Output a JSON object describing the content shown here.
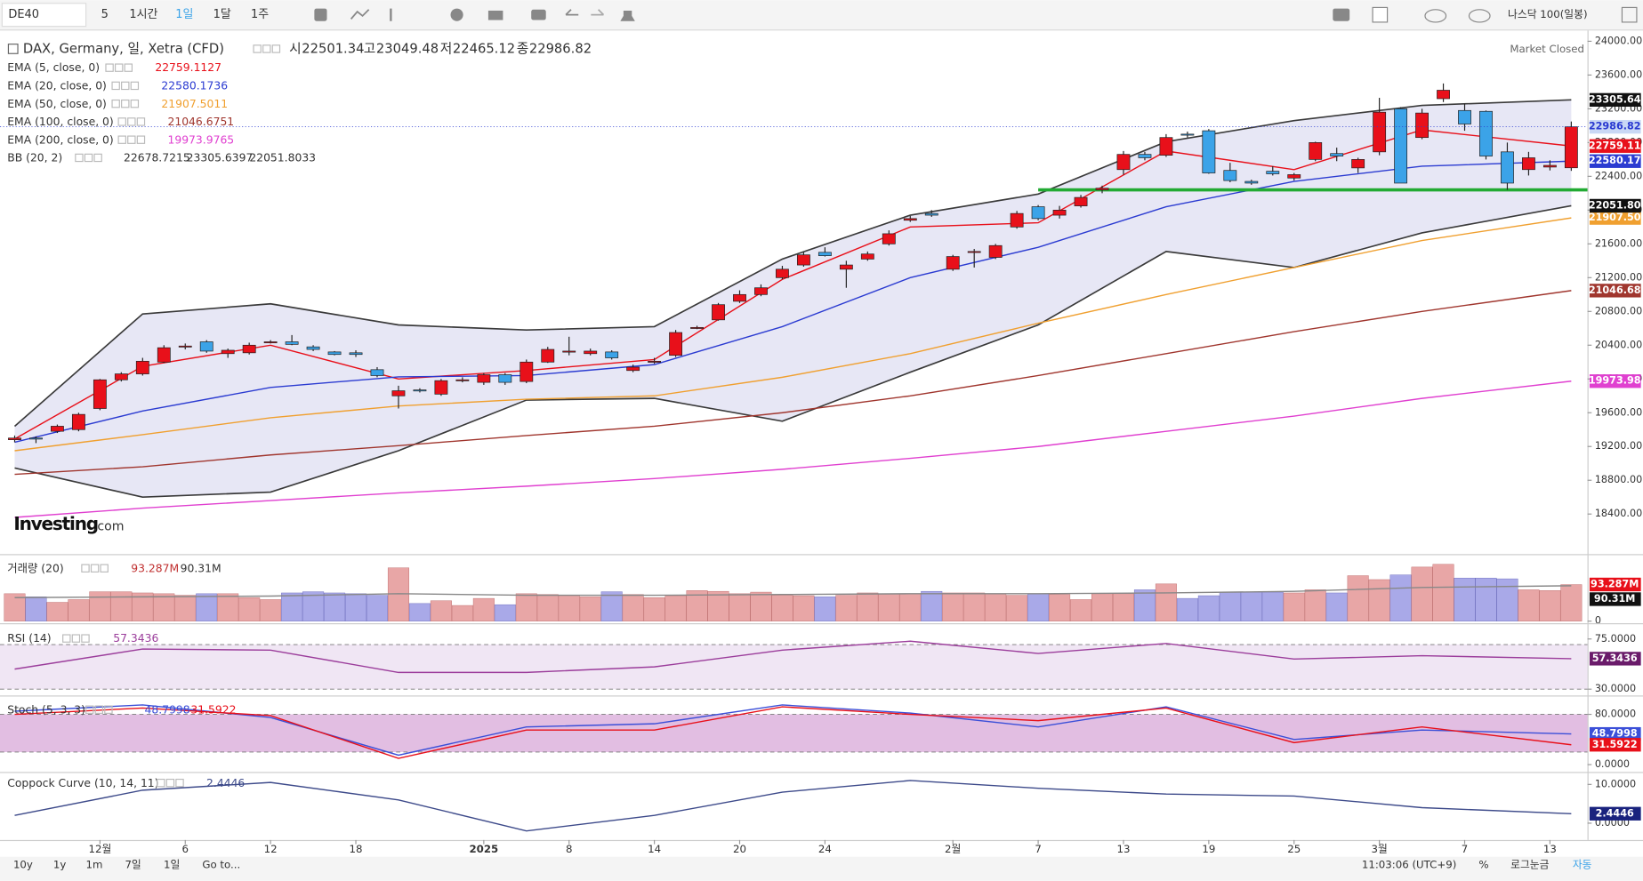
{
  "toolbar": {
    "symbol": "DE40",
    "intervals": [
      "5",
      "1시간",
      "1일",
      "1달",
      "1주"
    ],
    "compare": "나스닥 100(일봉)"
  },
  "chart_data": [
    {
      "type": "candlestick",
      "title": "DAX, Germany, 일, Xetra (CFD)",
      "status": "Market Closed",
      "logo": [
        "Investing",
        ".com"
      ],
      "ohlc_labels": [
        "시",
        "고",
        "저",
        "종"
      ],
      "up_color": "#e8101a",
      "down_color": "#3ba3e8",
      "candles": [
        [
          19280,
          19330,
          19250,
          19300
        ],
        [
          19300,
          19320,
          19240,
          19290
        ],
        [
          19380,
          19460,
          19360,
          19440
        ],
        [
          19400,
          19600,
          19380,
          19580
        ],
        [
          19650,
          20000,
          19630,
          19990
        ],
        [
          19990,
          20080,
          19970,
          20060
        ],
        [
          20060,
          20250,
          20040,
          20210
        ],
        [
          20200,
          20400,
          20190,
          20370
        ],
        [
          20380,
          20420,
          20350,
          20390
        ],
        [
          20440,
          20460,
          20310,
          20330
        ],
        [
          20300,
          20360,
          20250,
          20340
        ],
        [
          20310,
          20430,
          20290,
          20400
        ],
        [
          20440,
          20460,
          20420,
          20440
        ],
        [
          20440,
          20520,
          20400,
          20410
        ],
        [
          20380,
          20400,
          20330,
          20350
        ],
        [
          20320,
          20330,
          20280,
          20290
        ],
        [
          20310,
          20340,
          20260,
          20290
        ],
        [
          20110,
          20140,
          20020,
          20040
        ],
        [
          19800,
          19920,
          19650,
          19860
        ],
        [
          19870,
          19890,
          19840,
          19860
        ],
        [
          19820,
          20000,
          19800,
          19980
        ],
        [
          19990,
          20020,
          19960,
          19990
        ],
        [
          19960,
          20070,
          19930,
          20050
        ],
        [
          20050,
          20070,
          19930,
          19960
        ],
        [
          19970,
          20230,
          19950,
          20200
        ],
        [
          20200,
          20380,
          20190,
          20350
        ],
        [
          20320,
          20500,
          20280,
          20330
        ],
        [
          20300,
          20360,
          20280,
          20330
        ],
        [
          20320,
          20340,
          20230,
          20250
        ],
        [
          20100,
          20170,
          20080,
          20140
        ],
        [
          20200,
          20250,
          20180,
          20210
        ],
        [
          20280,
          20580,
          20260,
          20550
        ],
        [
          20600,
          20630,
          20590,
          20610
        ],
        [
          20700,
          20900,
          20690,
          20880
        ],
        [
          20920,
          21050,
          20900,
          21000
        ],
        [
          21000,
          21120,
          20980,
          21080
        ],
        [
          21200,
          21340,
          21180,
          21300
        ],
        [
          21350,
          21500,
          21330,
          21470
        ],
        [
          21500,
          21560,
          21450,
          21460
        ],
        [
          21300,
          21400,
          21080,
          21350
        ],
        [
          21420,
          21510,
          21400,
          21480
        ],
        [
          21600,
          21760,
          21580,
          21720
        ],
        [
          21880,
          21930,
          21860,
          21900
        ],
        [
          21960,
          22000,
          21920,
          21940
        ],
        [
          21300,
          21470,
          21280,
          21450
        ],
        [
          21500,
          21540,
          21320,
          21510
        ],
        [
          21440,
          21600,
          21420,
          21580
        ],
        [
          21800,
          21990,
          21780,
          21960
        ],
        [
          22040,
          22060,
          21880,
          21900
        ],
        [
          21940,
          22050,
          21900,
          22000
        ],
        [
          22050,
          22180,
          22030,
          22150
        ],
        [
          22240,
          22290,
          22200,
          22260
        ],
        [
          22480,
          22700,
          22420,
          22660
        ],
        [
          22660,
          22690,
          22590,
          22620
        ],
        [
          22650,
          22900,
          22630,
          22860
        ],
        [
          22900,
          22930,
          22860,
          22890
        ],
        [
          22940,
          22960,
          22430,
          22440
        ],
        [
          22470,
          22560,
          22330,
          22350
        ],
        [
          22340,
          22360,
          22300,
          22320
        ],
        [
          22460,
          22520,
          22410,
          22430
        ],
        [
          22380,
          22440,
          22350,
          22420
        ],
        [
          22600,
          22810,
          22580,
          22800
        ],
        [
          22670,
          22740,
          22580,
          22640
        ],
        [
          22500,
          22620,
          22440,
          22600
        ],
        [
          22690,
          23330,
          22650,
          23160
        ],
        [
          23200,
          23220,
          22350,
          22320
        ],
        [
          22860,
          23200,
          22840,
          23150
        ],
        [
          23320,
          23500,
          23280,
          23420
        ],
        [
          23180,
          23260,
          22940,
          23020
        ],
        [
          23170,
          23180,
          22600,
          22640
        ],
        [
          22690,
          22800,
          22240,
          22320
        ],
        [
          22480,
          22690,
          22410,
          22620
        ],
        [
          22510,
          22590,
          22470,
          22530
        ],
        [
          22501.34,
          23049.48,
          22465.12,
          22986.82
        ]
      ],
      "ylim": [
        17950,
        24090
      ],
      "yticks": [
        {
          "value": 24000,
          "label": "24000.00"
        },
        {
          "value": 23600,
          "label": "23600.00"
        },
        {
          "value": 23200,
          "label": "23200.00"
        },
        {
          "value": 22800,
          "label": "22800.00"
        },
        {
          "value": 22400,
          "label": "22400.00"
        },
        {
          "value": 22000,
          "label": "22000.00"
        },
        {
          "value": 21600,
          "label": "21600.00"
        },
        {
          "value": 21200,
          "label": "21200.00"
        },
        {
          "value": 20800,
          "label": "20800.00"
        },
        {
          "value": 20400,
          "label": "20400.00"
        },
        {
          "value": 20000,
          "label": "20000.00"
        },
        {
          "value": 19600,
          "label": "19600.00"
        },
        {
          "value": 19200,
          "label": "19200.00"
        },
        {
          "value": 18800,
          "label": "18800.00"
        },
        {
          "value": 18400,
          "label": "18400.00"
        }
      ],
      "xticks": [
        {
          "value": 4,
          "label": "12월"
        },
        {
          "value": 8,
          "label": "6"
        },
        {
          "value": 12,
          "label": "12"
        },
        {
          "value": 16,
          "label": "18"
        },
        {
          "value": 22,
          "label": "2025"
        },
        {
          "value": 26,
          "label": "8"
        },
        {
          "value": 30,
          "label": "14"
        },
        {
          "value": 34,
          "label": "20"
        },
        {
          "value": 38,
          "label": "24"
        },
        {
          "value": 44,
          "label": "2월"
        },
        {
          "value": 48,
          "label": "7"
        },
        {
          "value": 52,
          "label": "13"
        },
        {
          "value": 56,
          "label": "19"
        },
        {
          "value": 60,
          "label": "25"
        },
        {
          "value": 64,
          "label": "3월"
        },
        {
          "value": 68,
          "label": "7"
        },
        {
          "value": 72,
          "label": "13"
        }
      ],
      "x": [
        0,
        6,
        12,
        18,
        24,
        30,
        36,
        42,
        48,
        54,
        60,
        66,
        73
      ],
      "series": [
        {
          "name": "EMA (5, close, 0)",
          "color": "#e8101a",
          "values": [
            19290,
            20150,
            20400,
            20000,
            20100,
            20230,
            21180,
            21800,
            21850,
            22700,
            22480,
            22950,
            22759.1127
          ],
          "axis_tag": "22759.11"
        },
        {
          "name": "EMA (20, close, 0)",
          "color": "#2b3bd1",
          "values": [
            19250,
            19620,
            19900,
            20025,
            20040,
            20170,
            20620,
            21200,
            21560,
            22040,
            22340,
            22520,
            22580.1736
          ],
          "axis_tag": "22580.17"
        },
        {
          "name": "EMA (50, close, 0)",
          "color": "#f0a030",
          "values": [
            19150,
            19340,
            19540,
            19680,
            19760,
            19800,
            20020,
            20300,
            20660,
            21000,
            21320,
            21640,
            21907.5011
          ],
          "axis_tag": "21907.50"
        },
        {
          "name": "EMA (100, close, 0)",
          "color": "#a0362e",
          "values": [
            18870,
            18960,
            19100,
            19210,
            19330,
            19440,
            19600,
            19800,
            20040,
            20300,
            20560,
            20800,
            21046.6751
          ],
          "axis_tag": "21046.68"
        },
        {
          "name": "EMA (200, close, 0)",
          "color": "#e040d0",
          "values": [
            18360,
            18470,
            18560,
            18650,
            18730,
            18820,
            18930,
            19060,
            19200,
            19380,
            19560,
            19770,
            19973.9765
          ],
          "axis_tag": "19973.98"
        }
      ],
      "bands": {
        "name": "BB (20, 2)",
        "color": "#3a3a3a",
        "fill": "#7878c8",
        "basis": 22678.7215,
        "upper": [
          19440,
          20770,
          20890,
          20640,
          20580,
          20620,
          21420,
          21940,
          22190,
          22810,
          23060,
          23240,
          23305.6397
        ],
        "upper_tag": "23305.64",
        "lower": [
          18945,
          18600,
          18660,
          19150,
          19750,
          19770,
          19500,
          20080,
          20640,
          21510,
          21320,
          21730,
          22051.8033
        ],
        "lower_tag": "22051.80"
      },
      "levels": [
        {
          "value": 22240,
          "from": 48,
          "color": "#22aa33"
        }
      ]
    },
    {
      "type": "bar",
      "title": "거래량 (20)",
      "values": [
        70,
        62,
        48,
        55,
        75,
        75,
        72,
        70,
        66,
        70,
        70,
        60,
        55,
        72,
        75,
        72,
        70,
        66,
        136,
        45,
        52,
        40,
        58,
        42,
        70,
        68,
        66,
        62,
        75,
        68,
        60,
        65,
        78,
        76,
        70,
        74,
        66,
        65,
        62,
        66,
        72,
        70,
        70,
        76,
        72,
        72,
        70,
        66,
        70,
        68,
        55,
        70,
        70,
        80,
        95,
        58,
        65,
        74,
        74,
        74,
        72,
        80,
        72,
        116,
        106,
        118,
        138,
        145,
        110,
        110,
        108,
        80,
        78,
        93.287
      ],
      "last_label": "93.287M",
      "ma": {
        "values": [
          60,
          62,
          64,
          70,
          66,
          66,
          68,
          70,
          70,
          72,
          76,
          86,
          90.31
        ],
        "last_label": "90.31M",
        "color": "#888888"
      },
      "ylim": [
        0,
        163
      ],
      "yticks": [
        0
      ]
    },
    {
      "type": "line",
      "title": "RSI (14)",
      "color": "#9b3d9b",
      "values": [
        48,
        66,
        65,
        45,
        45,
        50,
        65,
        73,
        62,
        71,
        57,
        60,
        57.3436
      ],
      "levels": [
        70,
        30
      ],
      "ylim": [
        26.2,
        86.3
      ],
      "yticks": [
        {
          "value": 75,
          "label": "75.0000"
        },
        {
          "value": 30,
          "label": "30.0000"
        }
      ]
    },
    {
      "type": "line",
      "title": "Stoch (5, 3, 3)",
      "levels": [
        80,
        20
      ],
      "series": [
        {
          "color": "#3b4fd8",
          "values": [
            85,
            95,
            75,
            15,
            60,
            65,
            95,
            82,
            60,
            92,
            40,
            55,
            48.7998
          ]
        },
        {
          "color": "#e8101a",
          "values": [
            80,
            90,
            78,
            10,
            55,
            55,
            92,
            80,
            70,
            90,
            35,
            60,
            31.5922
          ]
        }
      ],
      "ylim": [
        -8.3,
        105
      ],
      "yticks": [
        {
          "value": 80,
          "label": "80.0000"
        },
        {
          "value": 0,
          "label": "0.0000"
        }
      ]
    },
    {
      "type": "line",
      "title": "Coppock Curve (10, 14, 11)",
      "color": "#3d4a8a",
      "values": [
        2,
        8.5,
        10.5,
        6,
        -2,
        2,
        8,
        11,
        9,
        7.5,
        7,
        4,
        2.4446
      ],
      "ylim": [
        -3.8,
        12.4
      ],
      "yticks": [
        {
          "value": 10,
          "label": "10.0000"
        },
        {
          "value": 0,
          "label": "0.0000"
        }
      ]
    }
  ],
  "bottom_bar": {
    "ranges": [
      "10y",
      "1y",
      "1m",
      "7일",
      "1일"
    ],
    "goto": "Go to...",
    "clock": "11:03:06 (UTC+9)",
    "percent": "%",
    "log": "로그눈금",
    "auto": "자동"
  }
}
